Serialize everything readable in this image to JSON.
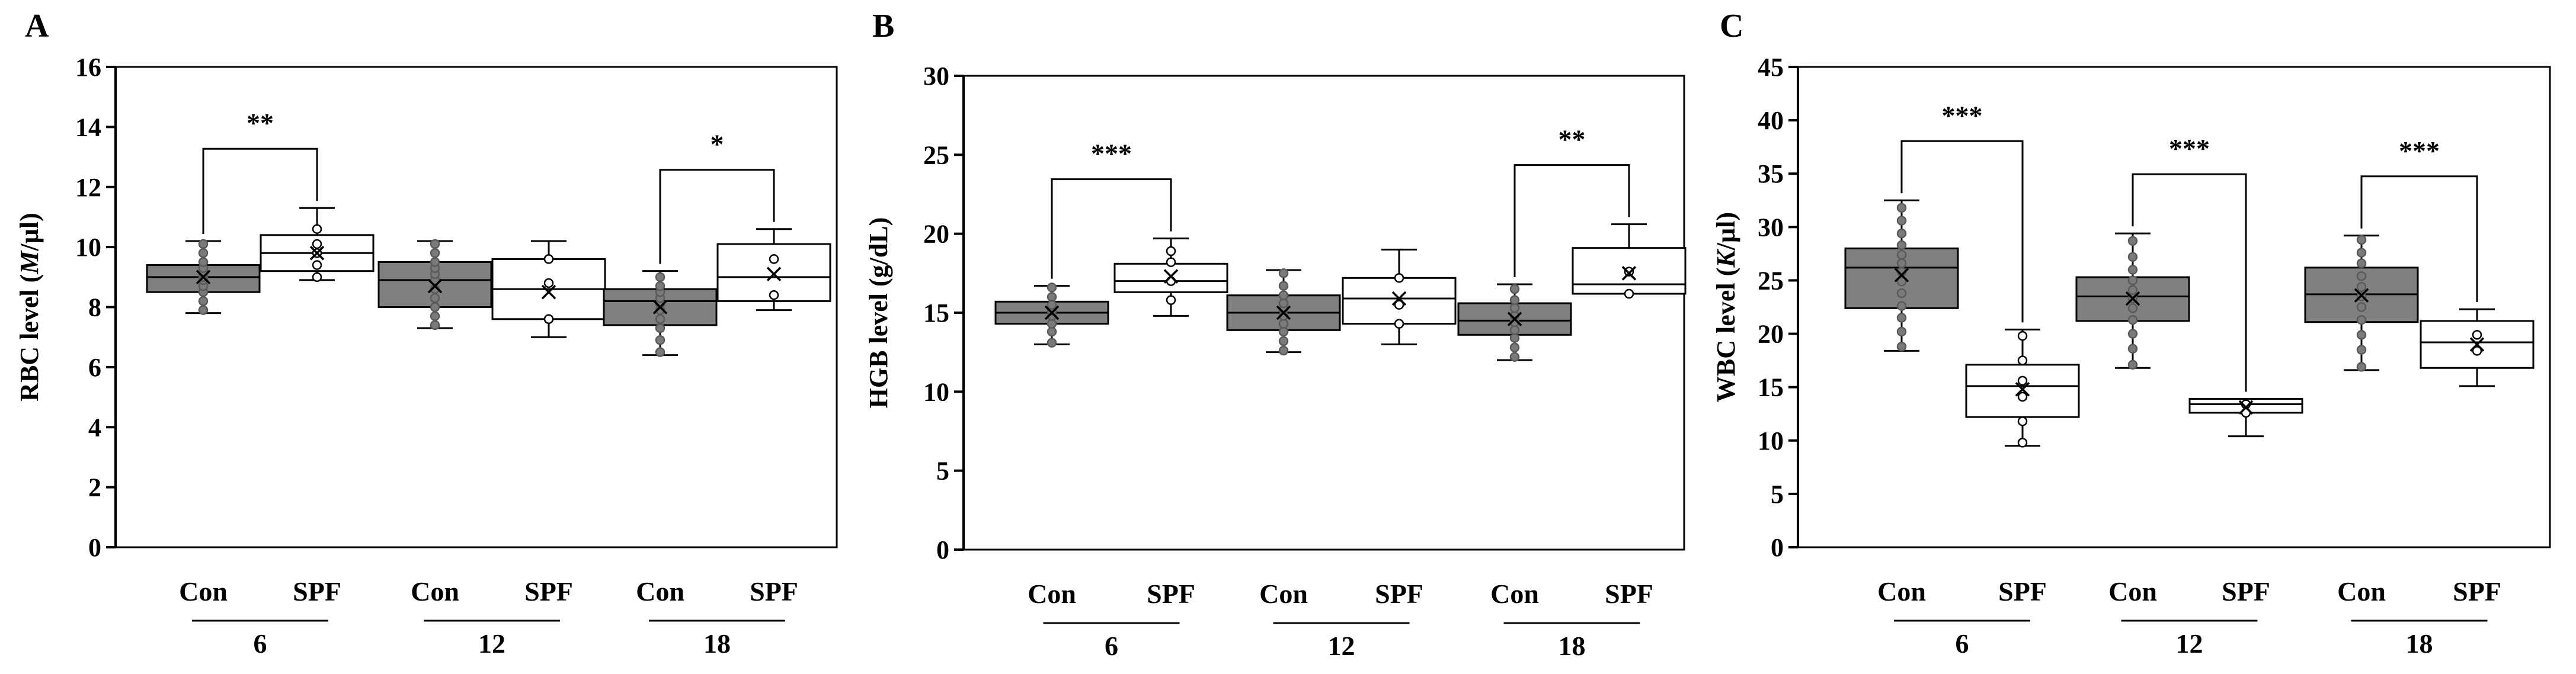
{
  "chart_data": [
    {
      "type": "box",
      "panel_label": "A",
      "ylabel": "RBC level (M/µl)",
      "ylabel_parts": [
        "RBC level (",
        "M",
        "/µl)"
      ],
      "ylim": [
        0,
        16
      ],
      "yticks": [
        0,
        2,
        4,
        6,
        8,
        10,
        12,
        14,
        16
      ],
      "groups": [
        {
          "label": "6",
          "boxes": [
            {
              "name": "Con",
              "fill": "#808080",
              "whisker_min": 7.8,
              "q1": 8.5,
              "median": 9.0,
              "q3": 9.4,
              "whisker_max": 10.2,
              "mean": 9.0,
              "points": [
                7.9,
                8.2,
                8.5,
                8.7,
                8.9,
                9.0,
                9.1,
                9.2,
                9.3,
                9.5,
                9.8,
                10.1
              ]
            },
            {
              "name": "SPF",
              "fill": "#ffffff",
              "whisker_min": 8.9,
              "q1": 9.2,
              "median": 9.8,
              "q3": 10.4,
              "whisker_max": 11.3,
              "mean": 9.8,
              "points": [
                9.0,
                9.4,
                9.8,
                10.1,
                10.6
              ]
            }
          ],
          "significance": "**"
        },
        {
          "label": "12",
          "boxes": [
            {
              "name": "Con",
              "fill": "#808080",
              "whisker_min": 7.3,
              "q1": 8.0,
              "median": 8.9,
              "q3": 9.5,
              "whisker_max": 10.2,
              "mean": 8.7,
              "points": [
                7.4,
                7.7,
                8.0,
                8.3,
                8.6,
                8.9,
                9.1,
                9.3,
                9.5,
                9.8,
                10.1
              ]
            },
            {
              "name": "SPF",
              "fill": "#ffffff",
              "whisker_min": 7.0,
              "q1": 7.6,
              "median": 8.6,
              "q3": 9.6,
              "whisker_max": 10.2,
              "mean": 8.5,
              "points": [
                7.6,
                8.8,
                9.6
              ]
            }
          ],
          "significance": ""
        },
        {
          "label": "18",
          "boxes": [
            {
              "name": "Con",
              "fill": "#808080",
              "whisker_min": 6.4,
              "q1": 7.4,
              "median": 8.2,
              "q3": 8.6,
              "whisker_max": 9.2,
              "mean": 8.0,
              "points": [
                6.5,
                6.9,
                7.3,
                7.6,
                7.9,
                8.1,
                8.3,
                8.5,
                8.7,
                9.0
              ]
            },
            {
              "name": "SPF",
              "fill": "#ffffff",
              "whisker_min": 7.9,
              "q1": 8.2,
              "median": 9.0,
              "q3": 10.1,
              "whisker_max": 10.6,
              "mean": 9.1,
              "points": [
                8.4,
                9.6
              ]
            }
          ],
          "significance": "*"
        }
      ]
    },
    {
      "type": "box",
      "panel_label": "B",
      "ylabel": "HGB level (g/dL)",
      "ylabel_parts": [
        "HGB level (g/dL)"
      ],
      "ylim": [
        0,
        30
      ],
      "yticks": [
        0,
        5,
        10,
        15,
        20,
        25,
        30
      ],
      "groups": [
        {
          "label": "6",
          "boxes": [
            {
              "name": "Con",
              "fill": "#808080",
              "whisker_min": 13.0,
              "q1": 14.3,
              "median": 15.0,
              "q3": 15.7,
              "whisker_max": 16.7,
              "mean": 15.0,
              "points": [
                13.1,
                13.8,
                14.3,
                14.8,
                15.1,
                15.5,
                16.0,
                16.6
              ]
            },
            {
              "name": "SPF",
              "fill": "#ffffff",
              "whisker_min": 14.8,
              "q1": 16.3,
              "median": 17.0,
              "q3": 18.1,
              "whisker_max": 19.7,
              "mean": 17.3,
              "points": [
                15.8,
                17.0,
                18.2,
                18.9
              ]
            }
          ],
          "significance": "***"
        },
        {
          "label": "12",
          "boxes": [
            {
              "name": "Con",
              "fill": "#808080",
              "whisker_min": 12.5,
              "q1": 13.9,
              "median": 15.0,
              "q3": 16.1,
              "whisker_max": 17.7,
              "mean": 15.0,
              "points": [
                12.6,
                13.2,
                13.8,
                14.3,
                14.8,
                15.2,
                15.6,
                16.1,
                16.7,
                17.5
              ]
            },
            {
              "name": "SPF",
              "fill": "#ffffff",
              "whisker_min": 13.0,
              "q1": 14.3,
              "median": 15.9,
              "q3": 17.2,
              "whisker_max": 19.0,
              "mean": 15.9,
              "points": [
                14.3,
                15.5,
                17.2
              ]
            }
          ],
          "significance": ""
        },
        {
          "label": "18",
          "boxes": [
            {
              "name": "Con",
              "fill": "#808080",
              "whisker_min": 12.0,
              "q1": 13.6,
              "median": 14.5,
              "q3": 15.6,
              "whisker_max": 16.8,
              "mean": 14.6,
              "points": [
                12.2,
                12.8,
                13.4,
                13.9,
                14.4,
                14.8,
                15.3,
                15.8,
                16.5
              ]
            },
            {
              "name": "SPF",
              "fill": "#ffffff",
              "whisker_min": 16.2,
              "q1": 16.2,
              "median": 16.8,
              "q3": 19.1,
              "whisker_max": 20.6,
              "mean": 17.5,
              "points": [
                16.2,
                17.6
              ]
            }
          ],
          "significance": "**"
        }
      ]
    },
    {
      "type": "box",
      "panel_label": "C",
      "ylabel": "WBC level (K/µl)",
      "ylabel_parts": [
        "WBC level (",
        "K",
        "/µl)"
      ],
      "ylim": [
        0,
        45
      ],
      "yticks": [
        0,
        5,
        10,
        15,
        20,
        25,
        30,
        35,
        40,
        45
      ],
      "groups": [
        {
          "label": "6",
          "boxes": [
            {
              "name": "Con",
              "fill": "#808080",
              "whisker_min": 18.4,
              "q1": 22.4,
              "median": 26.2,
              "q3": 28.0,
              "whisker_max": 32.5,
              "mean": 25.5,
              "points": [
                18.8,
                20.2,
                21.5,
                22.6,
                23.8,
                24.9,
                25.8,
                26.6,
                27.4,
                28.3,
                29.4,
                30.6,
                31.8
              ]
            },
            {
              "name": "SPF",
              "fill": "#ffffff",
              "whisker_min": 9.5,
              "q1": 12.2,
              "median": 15.1,
              "q3": 17.1,
              "whisker_max": 20.4,
              "mean": 14.8,
              "points": [
                9.8,
                11.8,
                14.1,
                15.6,
                17.5,
                19.8
              ]
            }
          ],
          "significance": "***"
        },
        {
          "label": "12",
          "boxes": [
            {
              "name": "Con",
              "fill": "#808080",
              "whisker_min": 16.8,
              "q1": 21.2,
              "median": 23.5,
              "q3": 25.3,
              "whisker_max": 29.4,
              "mean": 23.3,
              "points": [
                17.1,
                18.6,
                20.0,
                21.3,
                22.4,
                23.3,
                24.1,
                25.0,
                26.0,
                27.2,
                28.7
              ]
            },
            {
              "name": "SPF",
              "fill": "#ffffff",
              "whisker_min": 10.4,
              "q1": 12.6,
              "median": 13.4,
              "q3": 13.9,
              "whisker_max": 13.9,
              "mean": 13.1,
              "points": [
                12.6,
                13.4
              ]
            }
          ],
          "significance": "***"
        },
        {
          "label": "18",
          "boxes": [
            {
              "name": "Con",
              "fill": "#808080",
              "whisker_min": 16.6,
              "q1": 21.1,
              "median": 23.7,
              "q3": 26.2,
              "whisker_max": 29.2,
              "mean": 23.6,
              "points": [
                16.9,
                18.5,
                19.9,
                21.3,
                22.5,
                23.5,
                24.4,
                25.4,
                26.6,
                27.6,
                28.8
              ]
            },
            {
              "name": "SPF",
              "fill": "#ffffff",
              "whisker_min": 15.1,
              "q1": 16.8,
              "median": 19.2,
              "q3": 21.2,
              "whisker_max": 22.3,
              "mean": 19.0,
              "points": [
                18.4,
                19.9
              ]
            }
          ],
          "significance": "***"
        }
      ]
    }
  ]
}
